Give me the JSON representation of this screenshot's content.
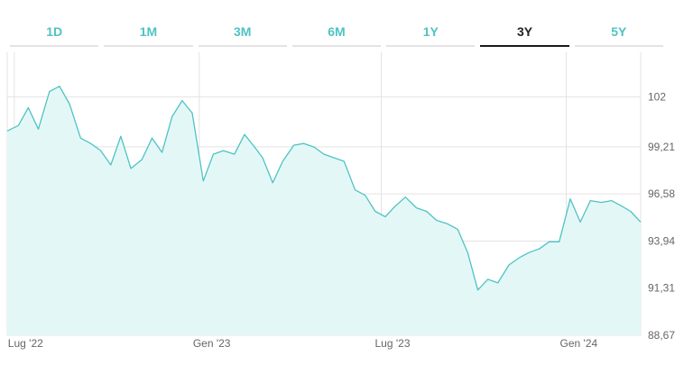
{
  "tabs": [
    {
      "label": "1D",
      "active": false
    },
    {
      "label": "1M",
      "active": false
    },
    {
      "label": "3M",
      "active": false
    },
    {
      "label": "6M",
      "active": false
    },
    {
      "label": "1Y",
      "active": false
    },
    {
      "label": "3Y",
      "active": true
    },
    {
      "label": "5Y",
      "active": false
    }
  ],
  "colors": {
    "line": "#4fc3c3",
    "fill": "#e4f7f7",
    "grid": "#e3e3e3",
    "active_tab": "#222222"
  },
  "chart_data": {
    "type": "area",
    "title": "",
    "xlabel": "",
    "ylabel": "",
    "grid": true,
    "ylim": [
      88.67,
      104.5
    ],
    "xlim": [
      "2022-06-24",
      "2024-03-15"
    ],
    "y_ticks": [
      102,
      99.21,
      96.58,
      93.94,
      91.31,
      88.67
    ],
    "y_tick_labels": [
      "102",
      "99,21",
      "96,58",
      "93,94",
      "91,31",
      "88,67"
    ],
    "x_ticks": [
      {
        "date": "2022-07-01",
        "label": "Lug '22"
      },
      {
        "date": "2023-01-01",
        "label": "Gen '23"
      },
      {
        "date": "2023-07-01",
        "label": "Lug '23"
      },
      {
        "date": "2024-01-01",
        "label": "Gen '24"
      }
    ],
    "series": [
      {
        "x": [
          "2022-06-24",
          "2022-07-05",
          "2022-07-15",
          "2022-07-25",
          "2022-08-05",
          "2022-08-15",
          "2022-08-25",
          "2022-09-05",
          "2022-09-15",
          "2022-09-25",
          "2022-10-05",
          "2022-10-15",
          "2022-10-25",
          "2022-11-05",
          "2022-11-15",
          "2022-11-25",
          "2022-12-05",
          "2022-12-15",
          "2022-12-25",
          "2023-01-05",
          "2023-01-15",
          "2023-01-25",
          "2023-02-05",
          "2023-02-15",
          "2023-02-25",
          "2023-03-05",
          "2023-03-15",
          "2023-03-25",
          "2023-04-05",
          "2023-04-15",
          "2023-04-25",
          "2023-05-05",
          "2023-05-15",
          "2023-05-25",
          "2023-06-05",
          "2023-06-15",
          "2023-06-25",
          "2023-07-05",
          "2023-07-15",
          "2023-07-25",
          "2023-08-05",
          "2023-08-15",
          "2023-08-25",
          "2023-09-05",
          "2023-09-15",
          "2023-09-25",
          "2023-10-05",
          "2023-10-15",
          "2023-10-25",
          "2023-11-05",
          "2023-11-15",
          "2023-11-25",
          "2023-12-05",
          "2023-12-15",
          "2023-12-25",
          "2024-01-05",
          "2024-01-15",
          "2024-01-25",
          "2024-02-05",
          "2024-02-15",
          "2024-02-25",
          "2024-03-05",
          "2024-03-15"
        ],
        "values": [
          100.1,
          100.4,
          101.4,
          100.2,
          102.3,
          102.6,
          101.6,
          99.7,
          99.4,
          99.0,
          98.2,
          99.8,
          98.0,
          98.5,
          99.7,
          98.9,
          100.9,
          101.8,
          101.1,
          97.3,
          98.8,
          99.0,
          98.8,
          99.9,
          99.2,
          98.6,
          97.2,
          98.4,
          99.3,
          99.4,
          99.2,
          98.8,
          98.6,
          98.4,
          96.8,
          96.5,
          95.6,
          95.3,
          95.9,
          96.4,
          95.8,
          95.6,
          95.1,
          94.9,
          94.6,
          93.3,
          91.2,
          91.8,
          91.6,
          92.6,
          93.0,
          93.3,
          93.5,
          93.9,
          93.9,
          96.3,
          95.0,
          96.2,
          96.1,
          96.2,
          95.9,
          95.6,
          95.0
        ]
      }
    ]
  }
}
